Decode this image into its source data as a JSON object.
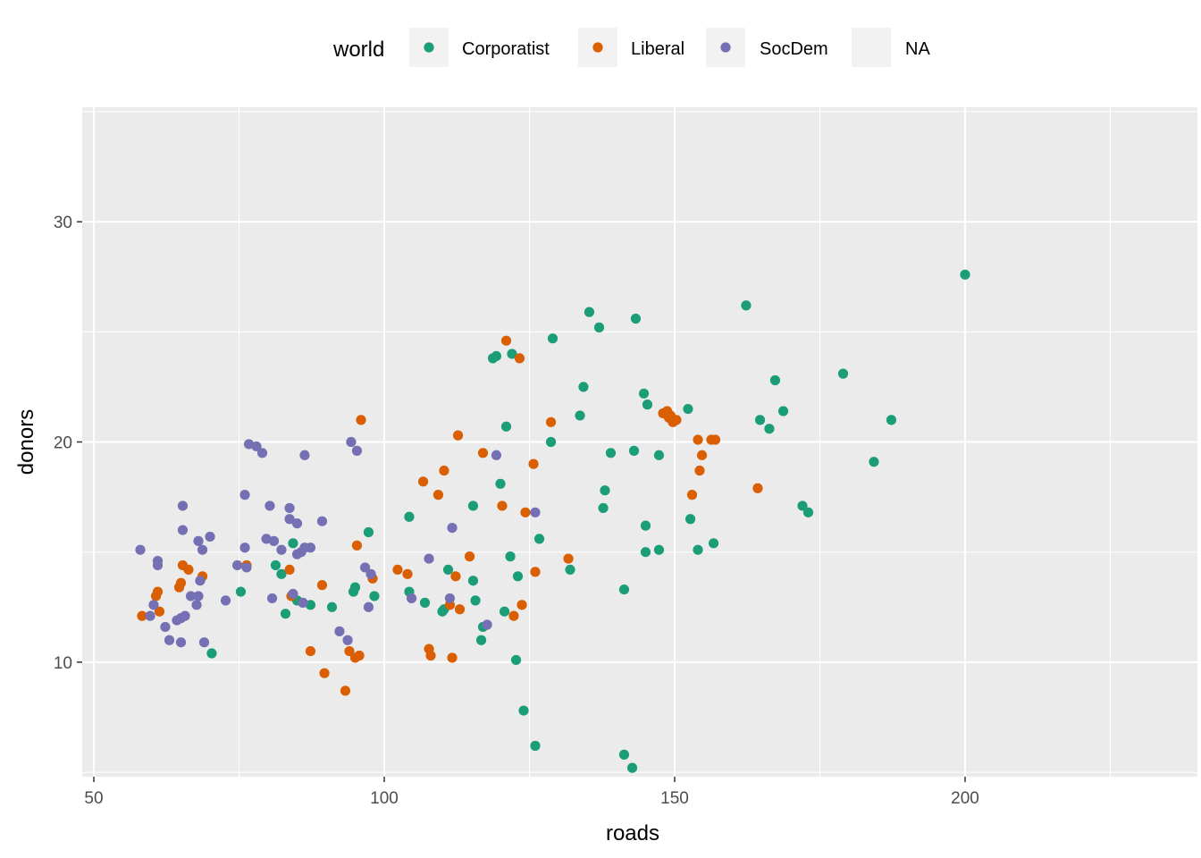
{
  "chart_data": {
    "type": "scatter",
    "xlabel": "roads",
    "ylabel": "donors",
    "xlim": [
      48,
      240
    ],
    "ylim": [
      4.8,
      35.2
    ],
    "x_ticks": [
      50,
      100,
      150,
      200
    ],
    "y_ticks": [
      10,
      20,
      30
    ],
    "x_ticks_labels": [
      "50",
      "100",
      "150",
      "200"
    ],
    "y_ticks_labels": [
      "10",
      "20",
      "30"
    ],
    "grid": true,
    "legend": {
      "title": "world",
      "position": "top",
      "entries": [
        {
          "label": "Corporatist",
          "color": "#1b9e77"
        },
        {
          "label": "Liberal",
          "color": "#d95f02"
        },
        {
          "label": "SocDem",
          "color": "#7570b3"
        },
        {
          "label": "NA",
          "color": null
        }
      ]
    },
    "series": [
      {
        "name": "Corporatist",
        "color": "#1b9e77",
        "points": [
          [
            70.3,
            10.4
          ],
          [
            75.3,
            13.2
          ],
          [
            81.3,
            14.4
          ],
          [
            82.3,
            14.0
          ],
          [
            83.0,
            12.2
          ],
          [
            84.3,
            15.4
          ],
          [
            85.0,
            12.8
          ],
          [
            87.3,
            12.6
          ],
          [
            91.0,
            12.5
          ],
          [
            94.7,
            13.2
          ],
          [
            95.0,
            13.4
          ],
          [
            97.3,
            15.9
          ],
          [
            98.3,
            13.0
          ],
          [
            104.3,
            16.6
          ],
          [
            104.3,
            13.2
          ],
          [
            107.0,
            12.7
          ],
          [
            110.0,
            12.3
          ],
          [
            110.3,
            12.4
          ],
          [
            111.0,
            14.2
          ],
          [
            115.3,
            17.1
          ],
          [
            115.3,
            13.7
          ],
          [
            115.7,
            12.8
          ],
          [
            116.7,
            11.0
          ],
          [
            117.0,
            11.6
          ],
          [
            118.7,
            23.8
          ],
          [
            119.3,
            23.9
          ],
          [
            120.0,
            18.1
          ],
          [
            120.7,
            12.3
          ],
          [
            121.0,
            20.7
          ],
          [
            121.7,
            14.8
          ],
          [
            122.0,
            24.0
          ],
          [
            122.7,
            10.1
          ],
          [
            123.0,
            13.9
          ],
          [
            124.0,
            7.8
          ],
          [
            126.0,
            6.2
          ],
          [
            126.7,
            15.6
          ],
          [
            128.7,
            20.0
          ],
          [
            129.0,
            24.7
          ],
          [
            132.0,
            14.2
          ],
          [
            133.7,
            21.2
          ],
          [
            134.3,
            22.5
          ],
          [
            135.3,
            25.9
          ],
          [
            137.0,
            25.2
          ],
          [
            137.7,
            17.0
          ],
          [
            138.0,
            17.8
          ],
          [
            139.0,
            19.5
          ],
          [
            141.3,
            5.8
          ],
          [
            141.3,
            13.3
          ],
          [
            142.7,
            5.2
          ],
          [
            143.0,
            19.6
          ],
          [
            143.3,
            25.6
          ],
          [
            144.7,
            22.2
          ],
          [
            145.0,
            16.2
          ],
          [
            145.0,
            15.0
          ],
          [
            145.3,
            21.7
          ],
          [
            147.3,
            19.4
          ],
          [
            147.3,
            15.1
          ],
          [
            152.3,
            21.5
          ],
          [
            152.7,
            16.5
          ],
          [
            154.0,
            15.1
          ],
          [
            156.7,
            15.4
          ],
          [
            162.3,
            26.2
          ],
          [
            164.7,
            21.0
          ],
          [
            166.3,
            20.6
          ],
          [
            167.3,
            22.8
          ],
          [
            168.7,
            21.4
          ],
          [
            172.0,
            17.1
          ],
          [
            173.0,
            16.8
          ],
          [
            179.0,
            23.1
          ],
          [
            184.3,
            19.1
          ],
          [
            187.3,
            21.0
          ],
          [
            200.0,
            27.6
          ]
        ]
      },
      {
        "name": "Liberal",
        "color": "#d95f02",
        "points": [
          [
            58.3,
            12.1
          ],
          [
            60.7,
            13.0
          ],
          [
            61.0,
            13.2
          ],
          [
            61.3,
            12.3
          ],
          [
            64.7,
            13.4
          ],
          [
            65.0,
            13.6
          ],
          [
            65.3,
            14.4
          ],
          [
            66.3,
            14.2
          ],
          [
            68.7,
            13.9
          ],
          [
            76.3,
            14.4
          ],
          [
            83.7,
            14.2
          ],
          [
            84.0,
            13.0
          ],
          [
            87.3,
            10.5
          ],
          [
            89.3,
            13.5
          ],
          [
            89.7,
            9.5
          ],
          [
            93.3,
            8.7
          ],
          [
            94.0,
            10.5
          ],
          [
            95.0,
            10.2
          ],
          [
            95.3,
            15.3
          ],
          [
            95.7,
            10.3
          ],
          [
            96.0,
            21.0
          ],
          [
            98.0,
            13.8
          ],
          [
            102.3,
            14.2
          ],
          [
            104.0,
            14.0
          ],
          [
            106.7,
            18.2
          ],
          [
            107.7,
            10.6
          ],
          [
            108.0,
            10.3
          ],
          [
            109.3,
            17.6
          ],
          [
            110.3,
            18.7
          ],
          [
            111.3,
            12.6
          ],
          [
            111.7,
            10.2
          ],
          [
            112.3,
            13.9
          ],
          [
            112.7,
            20.3
          ],
          [
            113.0,
            12.4
          ],
          [
            114.7,
            14.8
          ],
          [
            117.0,
            19.5
          ],
          [
            120.3,
            17.1
          ],
          [
            121.0,
            24.6
          ],
          [
            122.3,
            12.1
          ],
          [
            123.3,
            23.8
          ],
          [
            123.7,
            12.6
          ],
          [
            124.3,
            16.8
          ],
          [
            125.7,
            19.0
          ],
          [
            126.0,
            14.1
          ],
          [
            128.7,
            20.9
          ],
          [
            131.7,
            14.7
          ],
          [
            148.0,
            21.3
          ],
          [
            148.7,
            21.4
          ],
          [
            149.0,
            21.1
          ],
          [
            149.3,
            21.2
          ],
          [
            149.7,
            20.9
          ],
          [
            150.3,
            21.0
          ],
          [
            153.0,
            17.6
          ],
          [
            154.0,
            20.1
          ],
          [
            154.3,
            18.7
          ],
          [
            154.7,
            19.4
          ],
          [
            156.3,
            20.1
          ],
          [
            157.0,
            20.1
          ],
          [
            164.3,
            17.9
          ]
        ]
      },
      {
        "name": "SocDem",
        "color": "#7570b3",
        "points": [
          [
            58.0,
            15.1
          ],
          [
            59.7,
            12.1
          ],
          [
            60.3,
            12.6
          ],
          [
            61.0,
            14.6
          ],
          [
            61.0,
            14.4
          ],
          [
            62.3,
            11.6
          ],
          [
            63.0,
            11.0
          ],
          [
            64.3,
            11.9
          ],
          [
            65.0,
            12.0
          ],
          [
            65.0,
            10.9
          ],
          [
            65.3,
            17.1
          ],
          [
            65.3,
            16.0
          ],
          [
            65.7,
            12.1
          ],
          [
            66.7,
            13.0
          ],
          [
            67.7,
            12.6
          ],
          [
            68.0,
            13.0
          ],
          [
            68.0,
            15.5
          ],
          [
            68.3,
            13.7
          ],
          [
            68.7,
            15.1
          ],
          [
            69.0,
            10.9
          ],
          [
            70.0,
            15.7
          ],
          [
            72.7,
            12.8
          ],
          [
            74.7,
            14.4
          ],
          [
            76.0,
            17.6
          ],
          [
            76.0,
            15.2
          ],
          [
            76.3,
            14.3
          ],
          [
            76.7,
            19.9
          ],
          [
            78.0,
            19.8
          ],
          [
            79.0,
            19.5
          ],
          [
            79.7,
            15.6
          ],
          [
            80.3,
            17.1
          ],
          [
            80.7,
            12.9
          ],
          [
            81.0,
            15.5
          ],
          [
            82.3,
            15.1
          ],
          [
            83.7,
            17.0
          ],
          [
            83.7,
            16.5
          ],
          [
            84.3,
            13.1
          ],
          [
            85.0,
            16.3
          ],
          [
            85.0,
            14.9
          ],
          [
            85.7,
            15.0
          ],
          [
            86.0,
            12.7
          ],
          [
            86.3,
            19.4
          ],
          [
            86.3,
            15.2
          ],
          [
            87.3,
            15.2
          ],
          [
            89.3,
            16.4
          ],
          [
            92.3,
            11.4
          ],
          [
            93.7,
            11.0
          ],
          [
            94.3,
            20.0
          ],
          [
            95.3,
            19.6
          ],
          [
            96.7,
            14.3
          ],
          [
            97.3,
            12.5
          ],
          [
            97.7,
            14.0
          ],
          [
            104.7,
            12.9
          ],
          [
            107.7,
            14.7
          ],
          [
            111.3,
            12.9
          ],
          [
            111.7,
            16.1
          ],
          [
            117.7,
            11.7
          ],
          [
            119.3,
            19.4
          ],
          [
            126.0,
            16.8
          ]
        ]
      }
    ]
  }
}
